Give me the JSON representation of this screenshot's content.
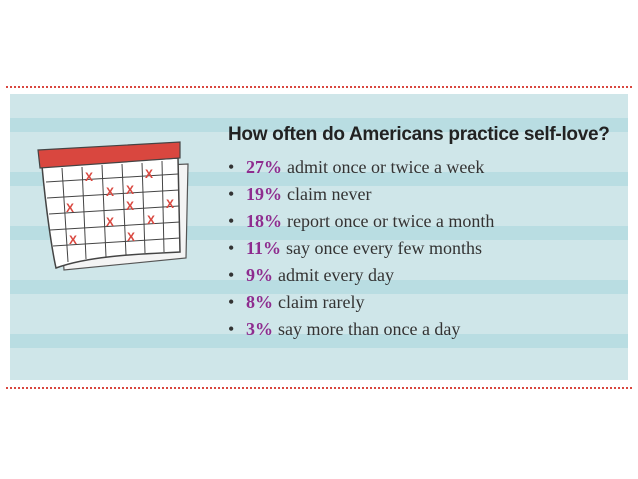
{
  "title": "How often do Americans practice self-love?",
  "bullet_glyph": "•",
  "items": [
    {
      "pct": "27%",
      "text": "admit once or twice a week"
    },
    {
      "pct": "19%",
      "text": "claim never"
    },
    {
      "pct": "18%",
      "text": "report once or twice a month"
    },
    {
      "pct": "11%",
      "text": "say once every few months"
    },
    {
      "pct": "9%",
      "text": "admit every day"
    },
    {
      "pct": "8%",
      "text": "claim rarely"
    },
    {
      "pct": "3%",
      "text": "say more than once a day"
    }
  ],
  "calendar": {
    "mark_glyph": "X"
  },
  "colors": {
    "panel_bg": "#cfe6e9",
    "stripe": "#b9dde2",
    "percent": "#8e2c8f",
    "calendar_header": "#d9473f",
    "mark": "#d9473f",
    "rule": "#d9473f"
  }
}
